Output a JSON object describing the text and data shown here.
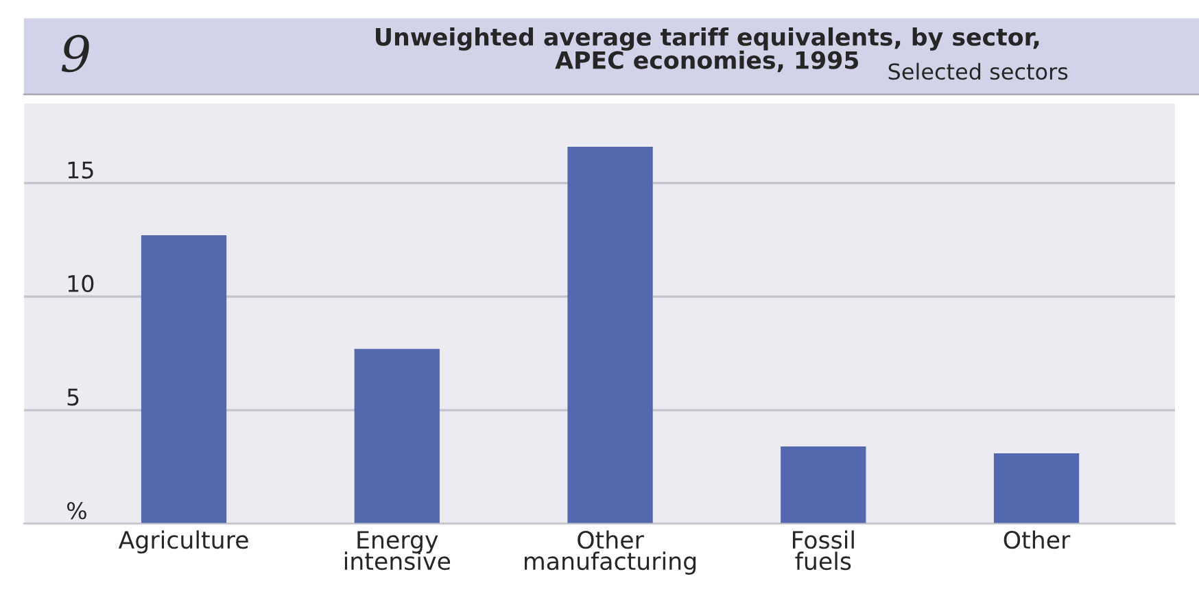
{
  "chart_data": {
    "type": "bar",
    "title": "Unweighted average tariff equivalents, by sector,\nAPEC economies, 1995",
    "subtitle": "Selected sectors",
    "annotations": [
      "9"
    ],
    "categories": [
      "Agriculture",
      "Energy\nintensive",
      "Other\nmanufacturing",
      "Fossil\nfuels",
      "Other"
    ],
    "values": [
      12.7,
      7.7,
      16.6,
      3.4,
      3.1
    ],
    "color": "#5468ad",
    "ylim": [
      0,
      18.5
    ],
    "yticks": [
      {
        "value": 0,
        "label": "%"
      },
      5,
      10,
      15
    ],
    "grid": "y"
  }
}
